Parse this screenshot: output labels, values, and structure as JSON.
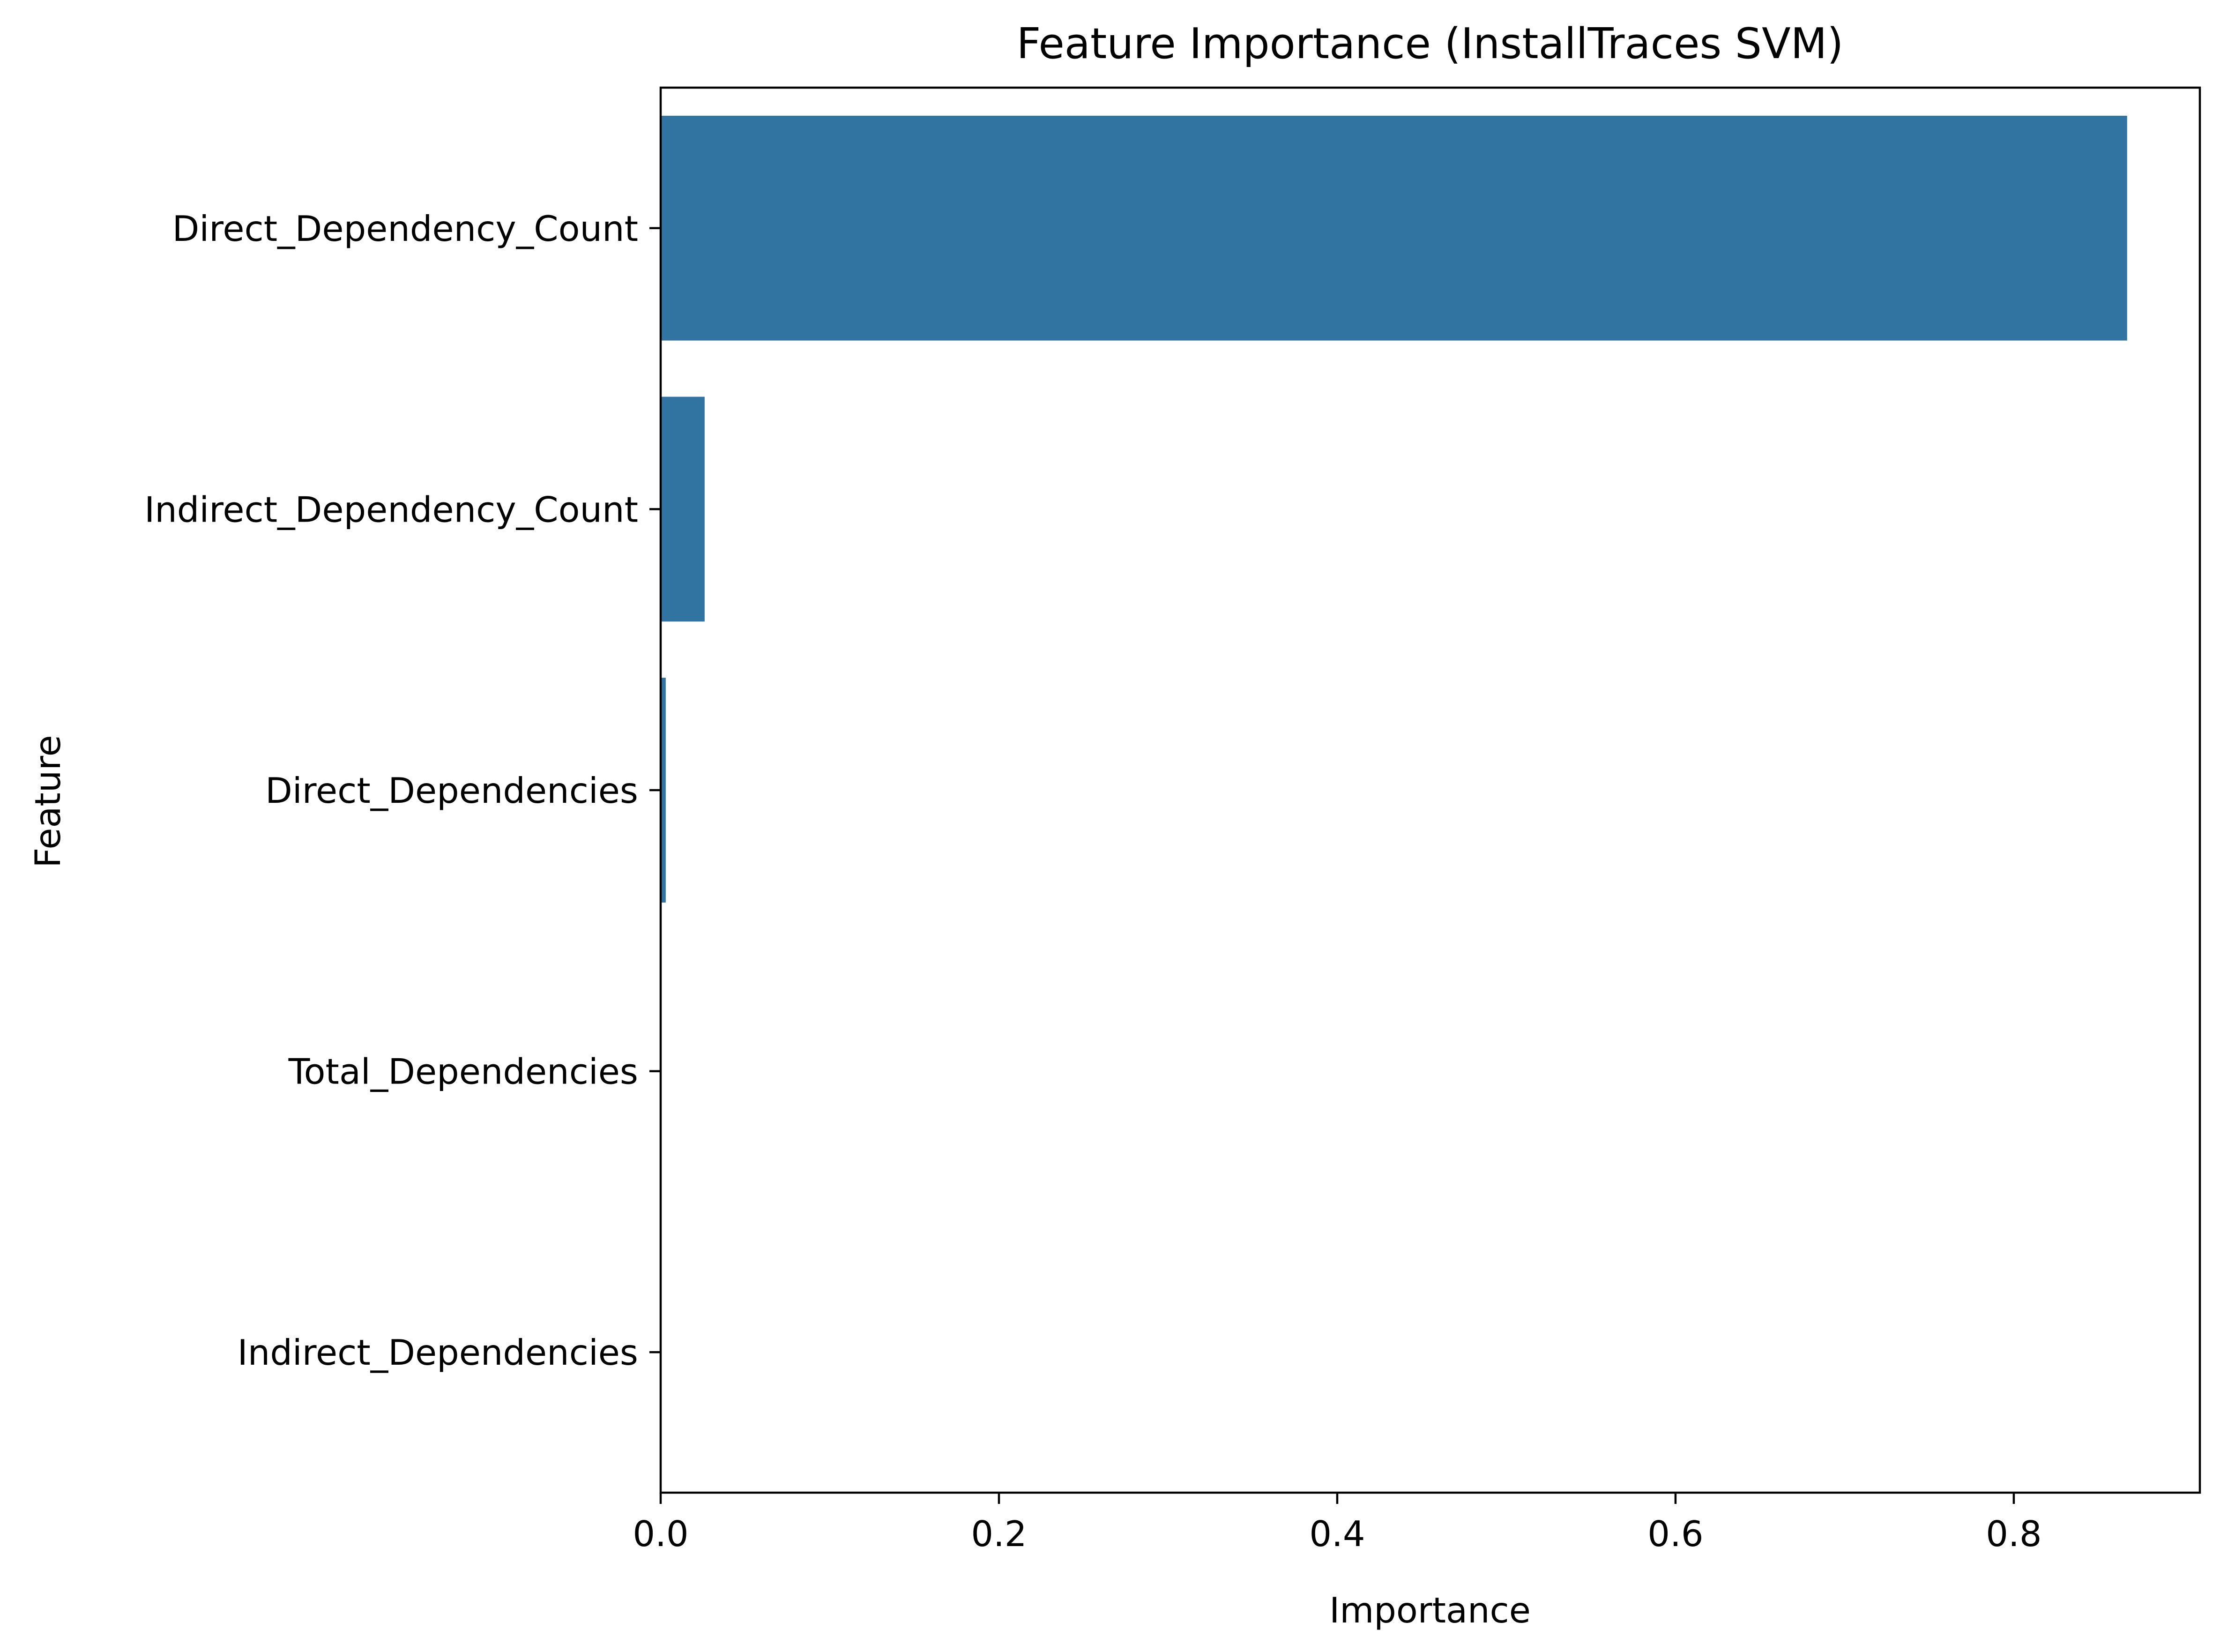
{
  "chart_data": {
    "type": "bar",
    "orientation": "horizontal",
    "title": "Feature Importance (InstallTraces SVM)",
    "xlabel": "Importance",
    "ylabel": "Feature",
    "categories": [
      "Direct_Dependency_Count",
      "Indirect_Dependency_Count",
      "Direct_Dependencies",
      "Total_Dependencies",
      "Indirect_Dependencies"
    ],
    "values": [
      0.867,
      0.026,
      0.003,
      0.0,
      0.0
    ],
    "xlim": [
      0.0,
      0.91
    ],
    "xticks": [
      "0.0",
      "0.2",
      "0.4",
      "0.6",
      "0.8"
    ],
    "bar_color": "#3274a1",
    "grid": false
  }
}
